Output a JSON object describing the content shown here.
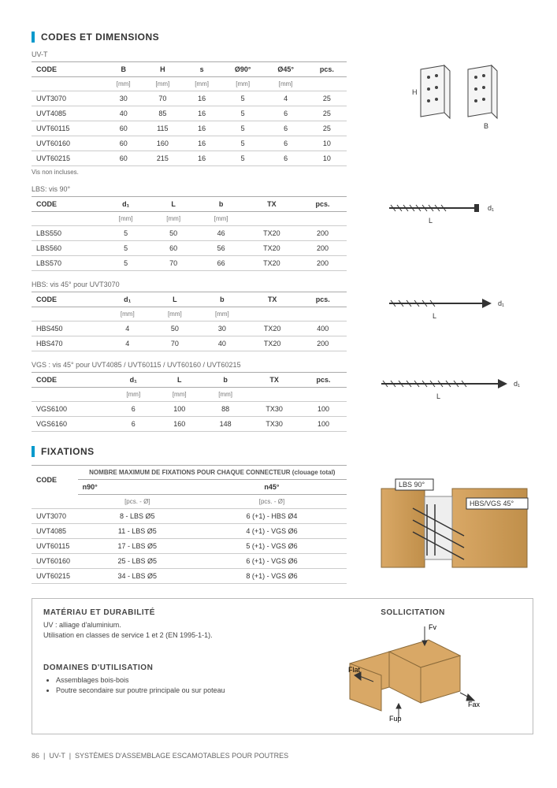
{
  "section1": {
    "title": "CODES ET DIMENSIONS",
    "sub_uvt": "UV-T",
    "uvt_table": {
      "headers": [
        "CODE",
        "B",
        "H",
        "s",
        "Ø90°",
        "Ø45°",
        "pcs."
      ],
      "units": [
        "",
        "[mm]",
        "[mm]",
        "[mm]",
        "[mm]",
        "[mm]",
        ""
      ],
      "rows": [
        [
          "UVT3070",
          "30",
          "70",
          "16",
          "5",
          "4",
          "25"
        ],
        [
          "UVT4085",
          "40",
          "85",
          "16",
          "5",
          "6",
          "25"
        ],
        [
          "UVT60115",
          "60",
          "115",
          "16",
          "5",
          "6",
          "25"
        ],
        [
          "UVT60160",
          "60",
          "160",
          "16",
          "5",
          "6",
          "10"
        ],
        [
          "UVT60215",
          "60",
          "215",
          "16",
          "5",
          "6",
          "10"
        ]
      ]
    },
    "uvt_footnote": "Vis non incluses.",
    "sub_lbs": "LBS: vis 90°",
    "lbs_table": {
      "headers": [
        "CODE",
        "d₁",
        "L",
        "b",
        "TX",
        "pcs."
      ],
      "units": [
        "",
        "[mm]",
        "[mm]",
        "[mm]",
        "",
        ""
      ],
      "rows": [
        [
          "LBS550",
          "5",
          "50",
          "46",
          "TX20",
          "200"
        ],
        [
          "LBS560",
          "5",
          "60",
          "56",
          "TX20",
          "200"
        ],
        [
          "LBS570",
          "5",
          "70",
          "66",
          "TX20",
          "200"
        ]
      ]
    },
    "sub_hbs": "HBS: vis 45° pour UVT3070",
    "hbs_table": {
      "headers": [
        "CODE",
        "d₁",
        "L",
        "b",
        "TX",
        "pcs."
      ],
      "units": [
        "",
        "[mm]",
        "[mm]",
        "[mm]",
        "",
        ""
      ],
      "rows": [
        [
          "HBS450",
          "4",
          "50",
          "30",
          "TX20",
          "400"
        ],
        [
          "HBS470",
          "4",
          "70",
          "40",
          "TX20",
          "200"
        ]
      ]
    },
    "sub_vgs": "VGS : vis 45° pour UVT4085 / UVT60115 / UVT60160 / UVT60215",
    "vgs_table": {
      "headers": [
        "CODE",
        "d₁",
        "L",
        "b",
        "TX",
        "pcs."
      ],
      "units": [
        "",
        "[mm]",
        "[mm]",
        "[mm]",
        "",
        ""
      ],
      "rows": [
        [
          "VGS6100",
          "6",
          "100",
          "88",
          "TX30",
          "100"
        ],
        [
          "VGS6160",
          "6",
          "160",
          "148",
          "TX30",
          "100"
        ]
      ]
    }
  },
  "section2": {
    "title": "FIXATIONS",
    "group_header": "NOMBRE MAXIMUM DE FIXATIONS POUR CHAQUE CONNECTEUR (clouage total)",
    "fix_table": {
      "headers": [
        "CODE",
        "n90°",
        "n45°"
      ],
      "units": [
        "",
        "[pcs. - Ø]",
        "[pcs. - Ø]"
      ],
      "rows": [
        [
          "UVT3070",
          "8 - LBS Ø5",
          "6 (+1) - HBS Ø4"
        ],
        [
          "UVT4085",
          "11 - LBS Ø5",
          "4 (+1) - VGS Ø6"
        ],
        [
          "UVT60115",
          "17 - LBS Ø5",
          "5 (+1) - VGS Ø6"
        ],
        [
          "UVT60160",
          "25 - LBS Ø5",
          "6 (+1) - VGS Ø6"
        ],
        [
          "UVT60215",
          "34 - LBS Ø5",
          "8 (+1) - VGS Ø6"
        ]
      ]
    },
    "diagram_labels": {
      "lbs": "LBS 90°",
      "hbs": "HBS/VGS 45°"
    }
  },
  "infobox": {
    "h1": "MATÉRIAU ET DURABILITÉ",
    "t1a": "UV : alliage d'aluminium.",
    "t1b": "Utilisation en classes de service 1 et 2 (EN 1995-1-1).",
    "h2": "DOMAINES D'UTILISATION",
    "li1": "Assemblages bois-bois",
    "li2": "Poutre secondaire sur poutre principale ou sur poteau",
    "h3": "SOLLICITATION",
    "labels": {
      "fv": "Fv",
      "flat": "Flat",
      "fup": "Fup",
      "fax": "Fax"
    }
  },
  "footer": {
    "page": "86",
    "product": "UV-T",
    "desc": "SYSTÈMES D'ASSEMBLAGE ESCAMOTABLES POUR POUTRES"
  },
  "colors": {
    "accent": "#0099cc",
    "wood": "#d9a866",
    "wood_dark": "#c08f4a"
  }
}
